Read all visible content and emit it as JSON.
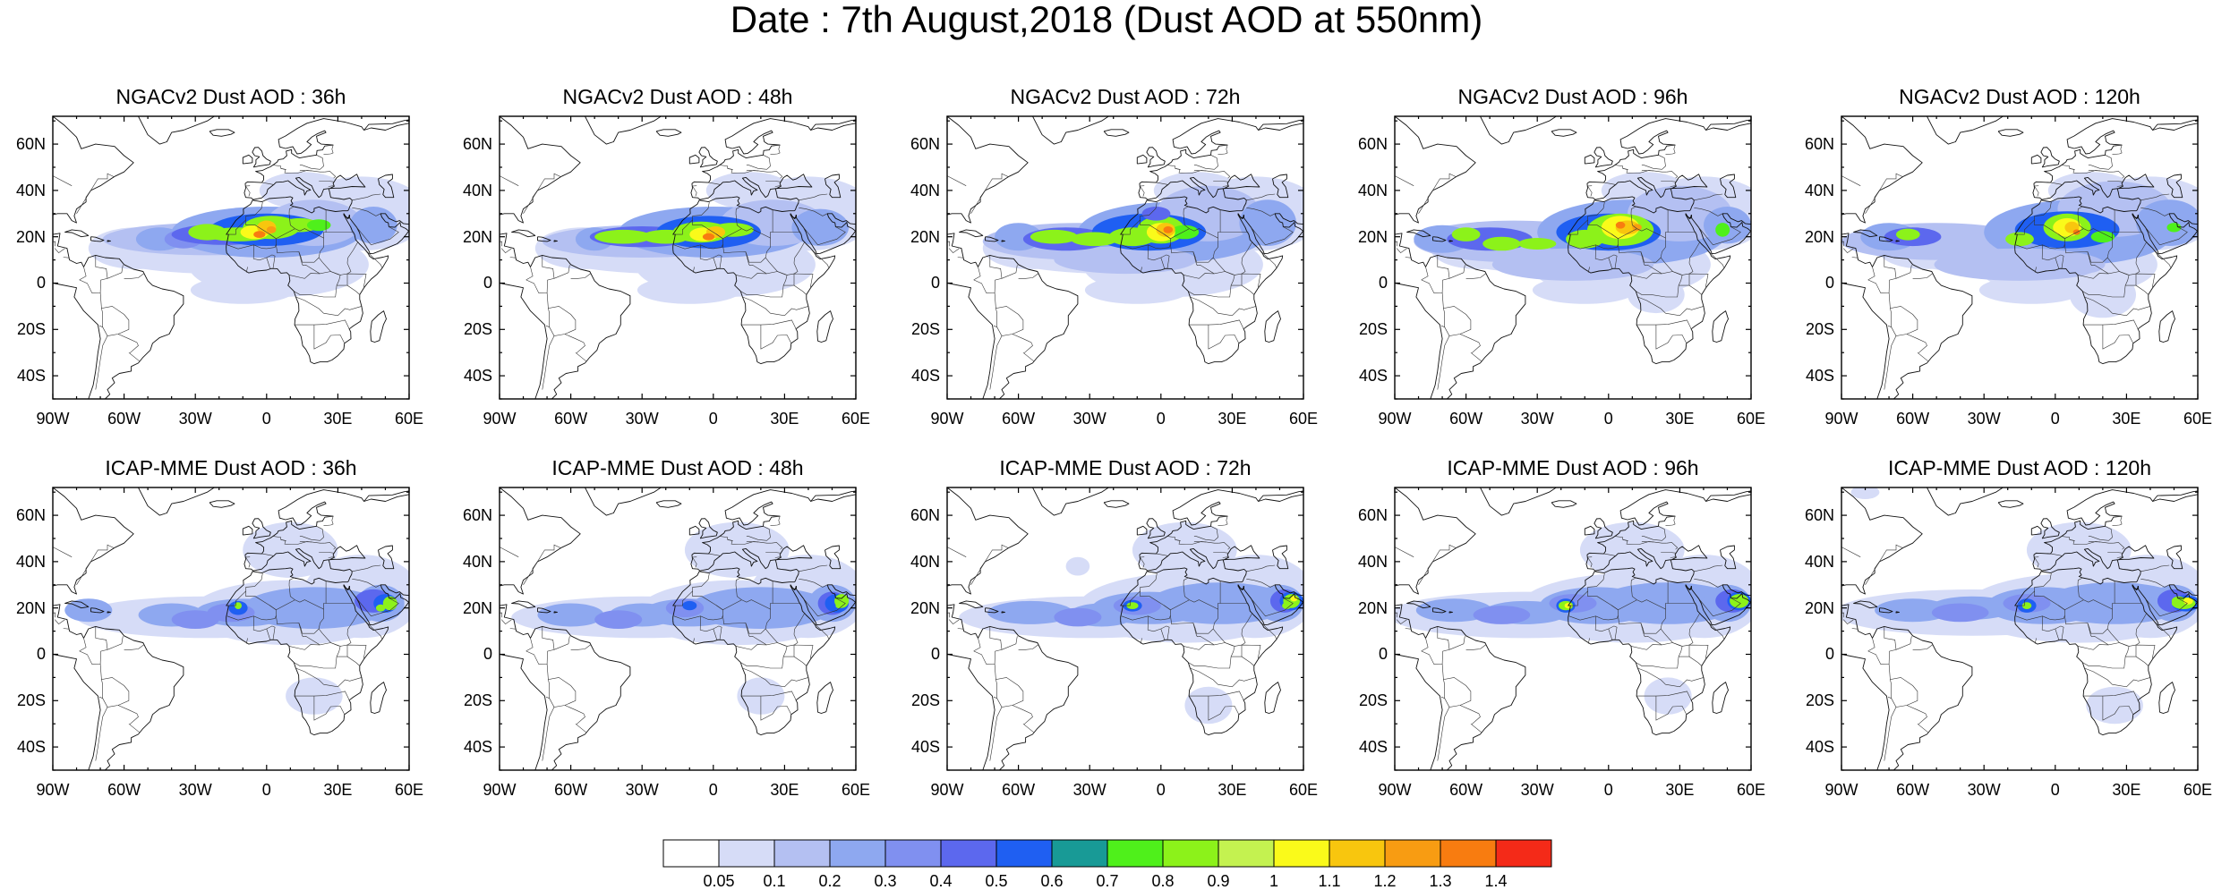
{
  "title": "Date : 7th August,2018 (Dust AOD at 550nm)",
  "lat_ticks": [
    "60N",
    "40N",
    "20N",
    "0",
    "20S",
    "40S"
  ],
  "lon_ticks": [
    "90W",
    "60W",
    "30W",
    "0",
    "30E",
    "60E"
  ],
  "panels": [
    {
      "title": "NGACv2 Dust AOD : 36h",
      "model": "NGACv2",
      "lead": "36h"
    },
    {
      "title": "NGACv2 Dust AOD : 48h",
      "model": "NGACv2",
      "lead": "48h"
    },
    {
      "title": "NGACv2 Dust AOD : 72h",
      "model": "NGACv2",
      "lead": "72h"
    },
    {
      "title": "NGACv2 Dust AOD : 96h",
      "model": "NGACv2",
      "lead": "96h"
    },
    {
      "title": "NGACv2 Dust AOD : 120h",
      "model": "NGACv2",
      "lead": "120h"
    },
    {
      "title": "ICAP-MME Dust AOD : 36h",
      "model": "ICAP-MME",
      "lead": "36h"
    },
    {
      "title": "ICAP-MME Dust AOD : 48h",
      "model": "ICAP-MME",
      "lead": "48h"
    },
    {
      "title": "ICAP-MME Dust AOD : 72h",
      "model": "ICAP-MME",
      "lead": "72h"
    },
    {
      "title": "ICAP-MME Dust AOD : 96h",
      "model": "ICAP-MME",
      "lead": "96h"
    },
    {
      "title": "ICAP-MME Dust AOD : 120h",
      "model": "ICAP-MME",
      "lead": "120h"
    }
  ],
  "colorbar": {
    "labels": [
      "0.05",
      "0.1",
      "0.2",
      "0.3",
      "0.4",
      "0.5",
      "0.6",
      "0.7",
      "0.8",
      "0.9",
      "1",
      "1.1",
      "1.2",
      "1.3",
      "1.4"
    ],
    "colors": [
      "#ffffff",
      "#d6dcf7",
      "#b4c0f2",
      "#8ea8f0",
      "#8090f0",
      "#5c68ee",
      "#1f5ff2",
      "#189a96",
      "#4ff01b",
      "#8cf21a",
      "#c4f250",
      "#fafa1a",
      "#f8c60e",
      "#f89c12",
      "#f87c10",
      "#f42a18"
    ]
  },
  "chart_data": {
    "type": "map",
    "variable": "Dust AOD at 550nm",
    "date": "7th August,2018",
    "models": [
      "NGACv2",
      "ICAP-MME"
    ],
    "forecast_leads": [
      "36h",
      "48h",
      "72h",
      "96h",
      "120h"
    ],
    "lon_range": [
      -90,
      60
    ],
    "lat_range": [
      -50,
      72
    ],
    "colorbar_levels": [
      0.05,
      0.1,
      0.2,
      0.3,
      0.4,
      0.5,
      0.6,
      0.7,
      0.8,
      0.9,
      1,
      1.1,
      1.2,
      1.3,
      1.4
    ]
  }
}
